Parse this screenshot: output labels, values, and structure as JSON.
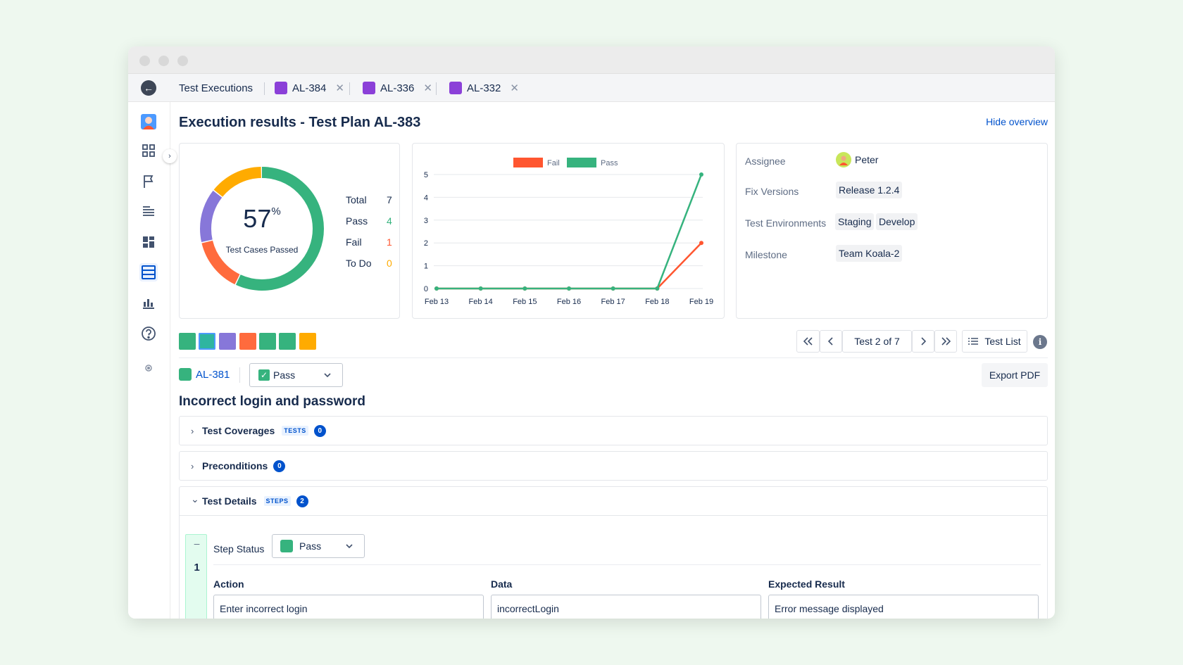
{
  "tabs": [
    {
      "label": "Test Executions"
    },
    {
      "label": "AL-384"
    },
    {
      "label": "AL-336"
    },
    {
      "label": "AL-332"
    }
  ],
  "header": {
    "title": "Execution results - Test Plan AL-383",
    "hide_overview": "Hide overview"
  },
  "summary": {
    "percent": "57",
    "percent_sign": "%",
    "caption": "Test Cases Passed",
    "stats": [
      {
        "label": "Total",
        "value": "7",
        "color": "#172b4d"
      },
      {
        "label": "Pass",
        "value": "4",
        "color": "#36b37e"
      },
      {
        "label": "Fail",
        "value": "1",
        "color": "#ff5630"
      },
      {
        "label": "To Do",
        "value": "0",
        "color": "#ffab00"
      }
    ],
    "donut_segments": [
      {
        "color": "#36b37e",
        "fraction": 0.572
      },
      {
        "color": "#ff6b3d",
        "fraction": 0.143
      },
      {
        "color": "#8777d9",
        "fraction": 0.143
      },
      {
        "color": "#ffab00",
        "fraction": 0.142
      }
    ]
  },
  "chart_data": {
    "type": "line",
    "x": [
      "Feb 13",
      "Feb 14",
      "Feb 15",
      "Feb 16",
      "Feb 17",
      "Feb 18",
      "Feb 19"
    ],
    "series": [
      {
        "name": "Fail",
        "color": "#ff5630",
        "values": [
          0,
          0,
          0,
          0,
          0,
          0,
          2
        ]
      },
      {
        "name": "Pass",
        "color": "#36b37e",
        "values": [
          0,
          0,
          0,
          0,
          0,
          0,
          5
        ]
      }
    ],
    "ylim": [
      0,
      5
    ],
    "yticks": [
      "0",
      "1",
      "2",
      "3",
      "4",
      "5"
    ],
    "legend": "top-center",
    "grid": true
  },
  "info": {
    "assignee_label": "Assignee",
    "assignee": "Peter",
    "fix_versions_label": "Fix Versions",
    "fix_version": "Release 1.2.4",
    "environments_label": "Test Environments",
    "environments": [
      "Staging",
      "Develop"
    ],
    "milestone_label": "Milestone",
    "milestone": "Team Koala-2"
  },
  "status_squares": [
    "#36b37e",
    "#2fb5a0",
    "#8777d9",
    "#ff6b3d",
    "#36b37e",
    "#36b37e",
    "#ffab00"
  ],
  "pager": {
    "label": "Test 2 of 7",
    "test_list": "Test List"
  },
  "test": {
    "key": "AL-381",
    "status": "Pass",
    "export": "Export PDF",
    "title": "Incorrect login and password"
  },
  "sections": [
    {
      "title": "Test Coverages",
      "tag": "TESTS",
      "count": "0",
      "chevron": "›"
    },
    {
      "title": "Preconditions",
      "tag": "",
      "count": "0",
      "chevron": "›"
    },
    {
      "title": "Test Details",
      "tag": "STEPS",
      "count": "2",
      "chevron": "⌄"
    }
  ],
  "step": {
    "number": "1",
    "minus": "–",
    "status_label": "Step Status",
    "status": "Pass",
    "columns": [
      "Action",
      "Data",
      "Expected Result"
    ],
    "values": [
      "Enter incorrect login",
      "incorrectLogin",
      "Error message displayed"
    ]
  }
}
